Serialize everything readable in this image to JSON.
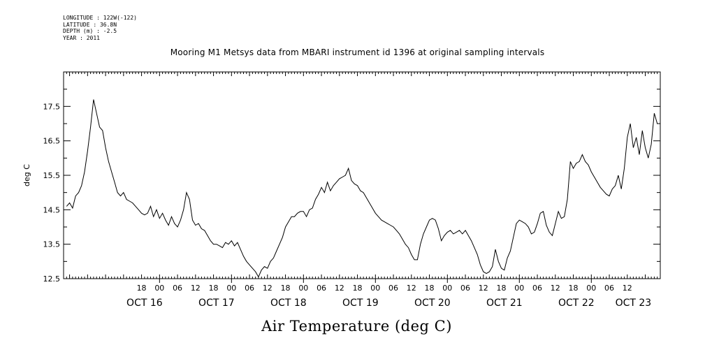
{
  "header": {
    "lines": [
      "LONGITUDE : 122W(-122)",
      "LATITUDE : 36.8N",
      "DEPTH (m) : -2.5",
      "YEAR : 2011"
    ]
  },
  "chart_data": {
    "type": "line",
    "title": "Mooring M1 Metsys data from MBARI instrument id 1396 at original sampling intervals",
    "xlabel": "Air Temperature (deg C)",
    "ylabel": "deg C",
    "ylim": [
      12.5,
      18.5
    ],
    "yticks": [
      12.5,
      13.5,
      14.5,
      15.5,
      16.5,
      17.5
    ],
    "ytick_labels": [
      "12.5",
      "13.5",
      "14.5",
      "15.5",
      "16.5",
      "17.5"
    ],
    "xlim_hours": [
      -32,
      167
    ],
    "hour_ticks": [
      {
        "h": -6,
        "label": "18"
      },
      {
        "h": 0,
        "label": "00"
      },
      {
        "h": 6,
        "label": "06"
      },
      {
        "h": 12,
        "label": "12"
      },
      {
        "h": 18,
        "label": "18"
      },
      {
        "h": 24,
        "label": "00"
      },
      {
        "h": 30,
        "label": "06"
      },
      {
        "h": 36,
        "label": "12"
      },
      {
        "h": 42,
        "label": "18"
      },
      {
        "h": 48,
        "label": "00"
      },
      {
        "h": 54,
        "label": "06"
      },
      {
        "h": 60,
        "label": "12"
      },
      {
        "h": 66,
        "label": "18"
      },
      {
        "h": 72,
        "label": "00"
      },
      {
        "h": 78,
        "label": "06"
      },
      {
        "h": 84,
        "label": "12"
      },
      {
        "h": 90,
        "label": "18"
      },
      {
        "h": 96,
        "label": "00"
      },
      {
        "h": 102,
        "label": "06"
      },
      {
        "h": 108,
        "label": "12"
      },
      {
        "h": 114,
        "label": "18"
      },
      {
        "h": 120,
        "label": "00"
      },
      {
        "h": 126,
        "label": "06"
      },
      {
        "h": 132,
        "label": "12"
      },
      {
        "h": 138,
        "label": "18"
      },
      {
        "h": 144,
        "label": "00"
      },
      {
        "h": 150,
        "label": "06"
      },
      {
        "h": 156,
        "label": "12"
      }
    ],
    "date_labels": [
      {
        "h": -5,
        "label": "OCT 16"
      },
      {
        "h": 19,
        "label": "OCT 17"
      },
      {
        "h": 43,
        "label": "OCT 18"
      },
      {
        "h": 67,
        "label": "OCT 19"
      },
      {
        "h": 91,
        "label": "OCT 20"
      },
      {
        "h": 115,
        "label": "OCT 21"
      },
      {
        "h": 139,
        "label": "OCT 22"
      },
      {
        "h": 158,
        "label": "OCT 23"
      }
    ],
    "series": [
      {
        "color": "#000000",
        "points": [
          [
            -31,
            14.6
          ],
          [
            -30,
            14.7
          ],
          [
            -29,
            14.55
          ],
          [
            -28,
            14.9
          ],
          [
            -27,
            15.0
          ],
          [
            -26,
            15.2
          ],
          [
            -25,
            15.6
          ],
          [
            -24,
            16.2
          ],
          [
            -23,
            16.9
          ],
          [
            -22,
            17.7
          ],
          [
            -21,
            17.3
          ],
          [
            -20,
            16.9
          ],
          [
            -19,
            16.8
          ],
          [
            -18,
            16.3
          ],
          [
            -17,
            15.9
          ],
          [
            -16,
            15.6
          ],
          [
            -15,
            15.3
          ],
          [
            -14,
            15.0
          ],
          [
            -13,
            14.9
          ],
          [
            -12,
            15.0
          ],
          [
            -11,
            14.8
          ],
          [
            -10,
            14.75
          ],
          [
            -9,
            14.7
          ],
          [
            -8,
            14.6
          ],
          [
            -7,
            14.5
          ],
          [
            -6,
            14.4
          ],
          [
            -5,
            14.35
          ],
          [
            -4,
            14.4
          ],
          [
            -3,
            14.6
          ],
          [
            -2,
            14.3
          ],
          [
            -1,
            14.5
          ],
          [
            0,
            14.25
          ],
          [
            1,
            14.4
          ],
          [
            2,
            14.2
          ],
          [
            3,
            14.05
          ],
          [
            4,
            14.3
          ],
          [
            5,
            14.1
          ],
          [
            6,
            14.0
          ],
          [
            7,
            14.2
          ],
          [
            8,
            14.5
          ],
          [
            9,
            15.0
          ],
          [
            10,
            14.8
          ],
          [
            11,
            14.2
          ],
          [
            12,
            14.05
          ],
          [
            13,
            14.1
          ],
          [
            14,
            13.95
          ],
          [
            15,
            13.9
          ],
          [
            16,
            13.75
          ],
          [
            17,
            13.6
          ],
          [
            18,
            13.5
          ],
          [
            19,
            13.5
          ],
          [
            20,
            13.45
          ],
          [
            21,
            13.4
          ],
          [
            22,
            13.55
          ],
          [
            23,
            13.5
          ],
          [
            24,
            13.6
          ],
          [
            25,
            13.45
          ],
          [
            26,
            13.55
          ],
          [
            27,
            13.35
          ],
          [
            28,
            13.15
          ],
          [
            29,
            13.0
          ],
          [
            30,
            12.9
          ],
          [
            31,
            12.8
          ],
          [
            32,
            12.7
          ],
          [
            33,
            12.55
          ],
          [
            34,
            12.75
          ],
          [
            35,
            12.85
          ],
          [
            36,
            12.8
          ],
          [
            37,
            13.0
          ],
          [
            38,
            13.1
          ],
          [
            39,
            13.3
          ],
          [
            40,
            13.5
          ],
          [
            41,
            13.7
          ],
          [
            42,
            14.0
          ],
          [
            43,
            14.15
          ],
          [
            44,
            14.3
          ],
          [
            45,
            14.3
          ],
          [
            46,
            14.4
          ],
          [
            47,
            14.45
          ],
          [
            48,
            14.45
          ],
          [
            49,
            14.3
          ],
          [
            50,
            14.5
          ],
          [
            51,
            14.55
          ],
          [
            52,
            14.8
          ],
          [
            53,
            14.95
          ],
          [
            54,
            15.15
          ],
          [
            55,
            15.0
          ],
          [
            56,
            15.3
          ],
          [
            57,
            15.05
          ],
          [
            58,
            15.2
          ],
          [
            59,
            15.3
          ],
          [
            60,
            15.4
          ],
          [
            61,
            15.45
          ],
          [
            62,
            15.5
          ],
          [
            63,
            15.7
          ],
          [
            64,
            15.35
          ],
          [
            65,
            15.25
          ],
          [
            66,
            15.2
          ],
          [
            67,
            15.05
          ],
          [
            68,
            15.0
          ],
          [
            69,
            14.85
          ],
          [
            70,
            14.7
          ],
          [
            71,
            14.55
          ],
          [
            72,
            14.4
          ],
          [
            73,
            14.3
          ],
          [
            74,
            14.2
          ],
          [
            75,
            14.15
          ],
          [
            76,
            14.1
          ],
          [
            77,
            14.05
          ],
          [
            78,
            14.0
          ],
          [
            79,
            13.9
          ],
          [
            80,
            13.8
          ],
          [
            81,
            13.65
          ],
          [
            82,
            13.5
          ],
          [
            83,
            13.4
          ],
          [
            84,
            13.2
          ],
          [
            85,
            13.05
          ],
          [
            86,
            13.05
          ],
          [
            87,
            13.5
          ],
          [
            88,
            13.8
          ],
          [
            89,
            14.0
          ],
          [
            90,
            14.2
          ],
          [
            91,
            14.25
          ],
          [
            92,
            14.2
          ],
          [
            93,
            13.95
          ],
          [
            94,
            13.6
          ],
          [
            95,
            13.75
          ],
          [
            96,
            13.85
          ],
          [
            97,
            13.9
          ],
          [
            98,
            13.8
          ],
          [
            99,
            13.85
          ],
          [
            100,
            13.9
          ],
          [
            101,
            13.8
          ],
          [
            102,
            13.9
          ],
          [
            103,
            13.75
          ],
          [
            104,
            13.6
          ],
          [
            105,
            13.4
          ],
          [
            106,
            13.2
          ],
          [
            107,
            12.9
          ],
          [
            108,
            12.7
          ],
          [
            109,
            12.65
          ],
          [
            110,
            12.7
          ],
          [
            111,
            12.85
          ],
          [
            112,
            13.35
          ],
          [
            113,
            13.0
          ],
          [
            114,
            12.8
          ],
          [
            115,
            12.75
          ],
          [
            116,
            13.1
          ],
          [
            117,
            13.3
          ],
          [
            118,
            13.7
          ],
          [
            119,
            14.1
          ],
          [
            120,
            14.2
          ],
          [
            121,
            14.15
          ],
          [
            122,
            14.1
          ],
          [
            123,
            14.0
          ],
          [
            124,
            13.8
          ],
          [
            125,
            13.85
          ],
          [
            126,
            14.1
          ],
          [
            127,
            14.4
          ],
          [
            128,
            14.45
          ],
          [
            129,
            14.05
          ],
          [
            130,
            13.85
          ],
          [
            131,
            13.75
          ],
          [
            132,
            14.1
          ],
          [
            133,
            14.45
          ],
          [
            134,
            14.25
          ],
          [
            135,
            14.3
          ],
          [
            136,
            14.8
          ],
          [
            137,
            15.9
          ],
          [
            138,
            15.7
          ],
          [
            139,
            15.85
          ],
          [
            140,
            15.9
          ],
          [
            141,
            16.1
          ],
          [
            142,
            15.9
          ],
          [
            143,
            15.8
          ],
          [
            144,
            15.6
          ],
          [
            145,
            15.45
          ],
          [
            146,
            15.3
          ],
          [
            147,
            15.15
          ],
          [
            148,
            15.05
          ],
          [
            149,
            14.95
          ],
          [
            150,
            14.9
          ],
          [
            151,
            15.1
          ],
          [
            152,
            15.2
          ],
          [
            153,
            15.5
          ],
          [
            154,
            15.1
          ],
          [
            155,
            15.7
          ],
          [
            156,
            16.6
          ],
          [
            157,
            17.0
          ],
          [
            158,
            16.3
          ],
          [
            159,
            16.6
          ],
          [
            160,
            16.1
          ],
          [
            161,
            16.8
          ],
          [
            162,
            16.3
          ],
          [
            163,
            16.0
          ],
          [
            164,
            16.4
          ],
          [
            165,
            17.3
          ],
          [
            166,
            17.0
          ]
        ]
      }
    ]
  }
}
